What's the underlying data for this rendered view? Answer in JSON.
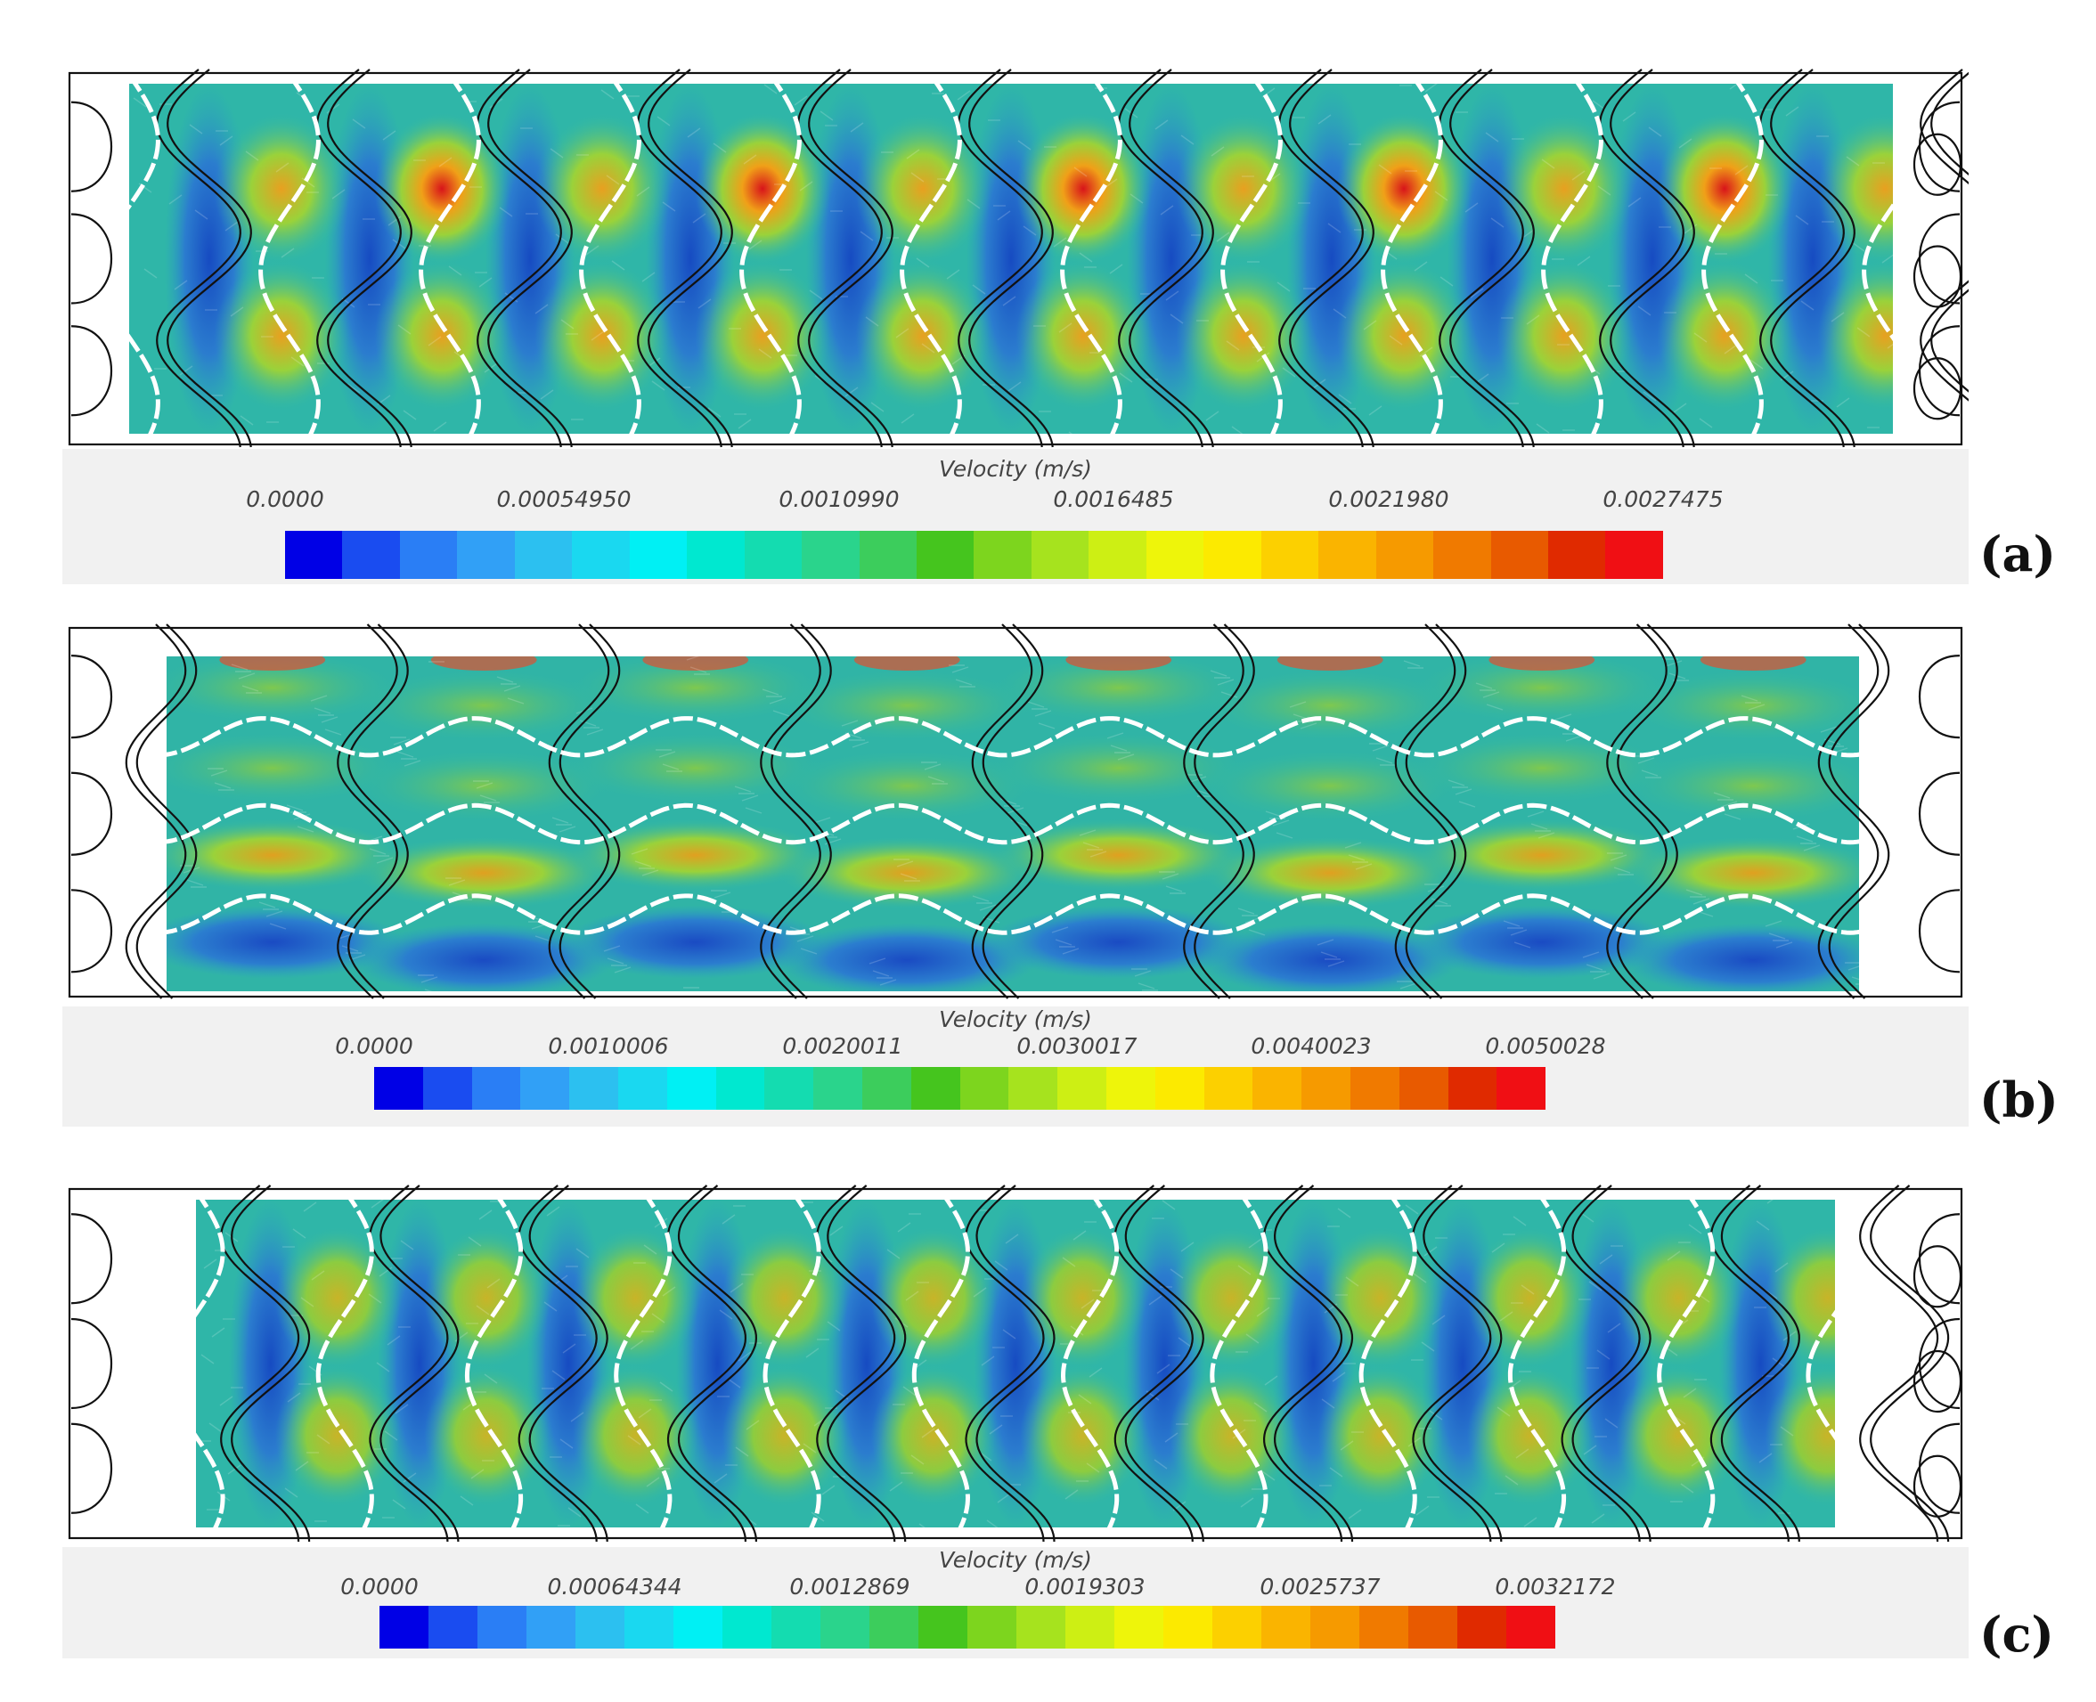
{
  "panels": [
    {
      "id": "a",
      "label": "(a)",
      "legend_title": "Velocity (m/s)",
      "ticks": [
        "0.0000",
        "0.00054950",
        "0.0010990",
        "0.0016485",
        "0.0021980",
        "0.0027475"
      ],
      "pattern": "vertical"
    },
    {
      "id": "b",
      "label": "(b)",
      "legend_title": "Velocity (m/s)",
      "ticks": [
        "0.0000",
        "0.0010006",
        "0.0020011",
        "0.0030017",
        "0.0040023",
        "0.0050028"
      ],
      "pattern": "horizontal"
    },
    {
      "id": "c",
      "label": "(c)",
      "legend_title": "Velocity (m/s)",
      "ticks": [
        "0.0000",
        "0.00064344",
        "0.0012869",
        "0.0019303",
        "0.0025737",
        "0.0032172"
      ],
      "pattern": "vertical"
    }
  ],
  "colors": {
    "colormap": [
      "#0000e6",
      "#1a4cf0",
      "#2a7ef5",
      "#31a0f6",
      "#2cc0f0",
      "#1ad8f0",
      "#00f0f4",
      "#00e8d0",
      "#14dcb0",
      "#2ad48c",
      "#3ccd5c",
      "#45c51e",
      "#7dd51e",
      "#a6e31e",
      "#cdef14",
      "#eef50a",
      "#fcea00",
      "#fcd000",
      "#fab400",
      "#f69a00",
      "#f07a00",
      "#e85a00",
      "#e02a00",
      "#f00f14"
    ],
    "wall": "#ffffff",
    "outline": "#111111"
  }
}
